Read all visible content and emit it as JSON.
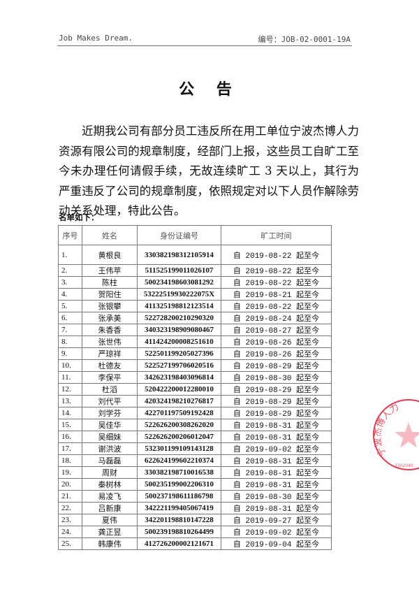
{
  "header": {
    "left": "Job Makes Dream.",
    "right": "编号：JOB-02-0001-19A"
  },
  "title": "公 告",
  "body": "近期我公司有部分员工违反所在用工单位宁波杰博人力资源有限公司的规章制度，经部门上报，这些员工自旷工至今未办理任何请假手续，无故连续旷工 3 天以上，其行为严重违反了公司的规章制度，依照规定对以下人员作解除劳动关系处理，特此公告。",
  "list_label": "名单如下：",
  "table": {
    "headers": [
      "序号",
      "姓名",
      "身份证编号",
      "旷工时间"
    ],
    "rows": [
      [
        "1.",
        "黄根良",
        "330382198312105914",
        "自 2019-08-22 起至今"
      ],
      [
        "2.",
        "王伟苹",
        "511525199011026107",
        "自 2019-08-22 起至今"
      ],
      [
        "3.",
        "陈柱",
        "500234198603081292",
        "自 2019-08-22 起至今"
      ],
      [
        "4.",
        "贺阳住",
        "53222519930222075X",
        "自 2019-08-21 起至今"
      ],
      [
        "5.",
        "张银攀",
        "411325198812123514",
        "自 2019-08-22 起至今"
      ],
      [
        "6.",
        "张承美",
        "522728200210290320",
        "自 2019-08-24 起至今"
      ],
      [
        "7.",
        "朱香香",
        "340323198909080467",
        "自 2019-08-27 起至今"
      ],
      [
        "8.",
        "张世伟",
        "411424200008251610",
        "自 2019-08-26 起至今"
      ],
      [
        "9.",
        "严琼祥",
        "522501199205027396",
        "自 2019-08-26 起至今"
      ],
      [
        "10.",
        "杜德友",
        "522527199706020516",
        "自 2019-08-29 起至今"
      ],
      [
        "11.",
        "李保平",
        "342623198403096814",
        "自 2019-08-30 起至今"
      ],
      [
        "12.",
        "杜滔",
        "520422200012280010",
        "自 2019-08-29 起至今"
      ],
      [
        "13.",
        "刘代平",
        "420324198210276817",
        "自 2019-08-29 起至今"
      ],
      [
        "14.",
        "刘学芬",
        "422701197509192428",
        "自 2019-08-29 起至今"
      ],
      [
        "15.",
        "吴佳华",
        "522626200308262020",
        "自 2019-08-31 起至今"
      ],
      [
        "16.",
        "吴细妹",
        "522626200206012047",
        "自 2019-08-31 起至今"
      ],
      [
        "17.",
        "谢洪波",
        "532301199109143128",
        "自 2019-09-02 起至今"
      ],
      [
        "18.",
        "马磊磊",
        "622624199602210374",
        "自 2019-08-31 起至今"
      ],
      [
        "19.",
        "周财",
        "330382198710016538",
        "自 2019-08-31 起至今"
      ],
      [
        "20.",
        "秦树林",
        "500235199002206310",
        "自 2019-08-31 起至今"
      ],
      [
        "21.",
        "易凌飞",
        "500237198611186798",
        "自 2019-08-30 起至今"
      ],
      [
        "22.",
        "吕新康",
        "342221199405067419",
        "自 2019-08-31 起至今"
      ],
      [
        "23.",
        "夏伟",
        "342201198810147228",
        "自 2019-09-27 起至今"
      ],
      [
        "24.",
        "龚正昱",
        "500239198810264499",
        "自 2019-09-02 起至今"
      ],
      [
        "25.",
        "韩康伟",
        "412726200002121671",
        "自 2019-09-04 起至今"
      ]
    ]
  },
  "stamp": {
    "text": "宁波杰博人力",
    "number": "3302040",
    "color": "#e8384f"
  }
}
